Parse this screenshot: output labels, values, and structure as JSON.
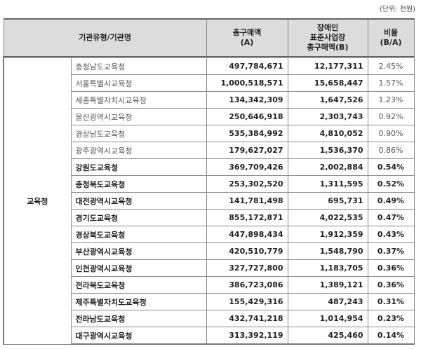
{
  "unit_label": "(단위: 천원)",
  "headers": {
    "org": "기관유형/기관명",
    "total_a": "총구매액\n(A)",
    "standard_b": "장애인\n표준사업장\n총구매액(B)",
    "ratio": "비율\n(B/A)"
  },
  "org_type": "교육청",
  "rows": [
    {
      "name": "충청남도교육청",
      "a": "497,784,671",
      "b": "12,177,311",
      "ratio": "2.45%"
    },
    {
      "name": "서울특별시교육청",
      "a": "1,000,518,571",
      "b": "15,658,447",
      "ratio": "1.57%"
    },
    {
      "name": "세종특별자치시교육청",
      "a": "134,342,309",
      "b": "1,647,526",
      "ratio": "1.23%"
    },
    {
      "name": "울산광역시교육청",
      "a": "250,646,918",
      "b": "2,303,743",
      "ratio": "0.92%"
    },
    {
      "name": "경상남도교육청",
      "a": "535,384,992",
      "b": "4,810,052",
      "ratio": "0.90%"
    },
    {
      "name": "광주광역시교육청",
      "a": "179,627,027",
      "b": "1,536,370",
      "ratio": "0.86%"
    },
    {
      "name": "강원도교육청",
      "a": "369,709,426",
      "b": "2,002,884",
      "ratio": "0.54%"
    },
    {
      "name": "충청북도교육청",
      "a": "253,302,520",
      "b": "1,311,595",
      "ratio": "0.52%"
    },
    {
      "name": "대전광역시교육청",
      "a": "141,781,498",
      "b": "695,731",
      "ratio": "0.49%"
    },
    {
      "name": "경기도교육청",
      "a": "855,172,871",
      "b": "4,022,535",
      "ratio": "0.47%"
    },
    {
      "name": "경상북도교육청",
      "a": "447,898,434",
      "b": "1,912,359",
      "ratio": "0.43%"
    },
    {
      "name": "부산광역시교육청",
      "a": "420,510,779",
      "b": "1,548,790",
      "ratio": "0.37%"
    },
    {
      "name": "인천광역시교육청",
      "a": "327,727,800",
      "b": "1,183,705",
      "ratio": "0.36%"
    },
    {
      "name": "전라북도교육청",
      "a": "386,723,086",
      "b": "1,389,121",
      "ratio": "0.36%"
    },
    {
      "name": "제주특별자치도교육청",
      "a": "155,429,316",
      "b": "487,243",
      "ratio": "0.31%"
    },
    {
      "name": "전라남도교육청",
      "a": "432,741,218",
      "b": "1,014,954",
      "ratio": "0.23%"
    },
    {
      "name": "대구광역시교육청",
      "a": "313,392,119",
      "b": "425,460",
      "ratio": "0.14%"
    }
  ]
}
